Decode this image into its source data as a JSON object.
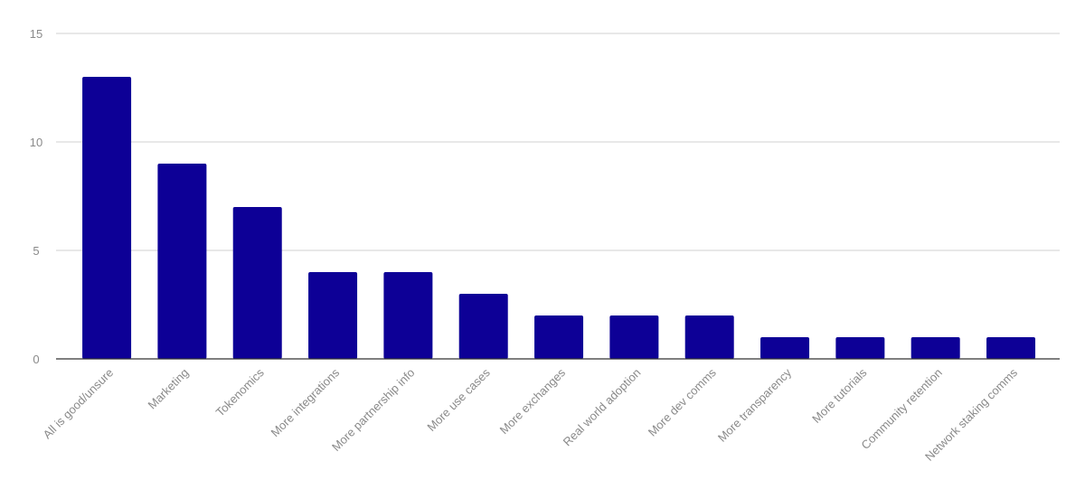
{
  "chart_data": {
    "type": "bar",
    "categories": [
      "All is good/unsure",
      "Marketing",
      "Tokenomics",
      "More integrations",
      "More partnership info",
      "More use cases",
      "More exchanges",
      "Real world adoption",
      "More dev comms",
      "More transparency",
      "More tutorials",
      "Community retention",
      "Network staking comms"
    ],
    "values": [
      13,
      9,
      7,
      4,
      4,
      3,
      2,
      2,
      2,
      1,
      1,
      1,
      1
    ],
    "color": "#0d0096",
    "ylim": [
      0,
      15
    ],
    "yticks": [
      0,
      5,
      10,
      15
    ],
    "grid": true
  }
}
